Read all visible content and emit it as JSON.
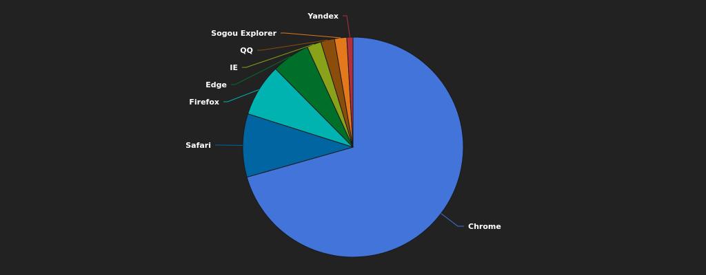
{
  "chart_data": {
    "type": "pie",
    "labels": [
      "Chrome",
      "Safari",
      "Firefox",
      "Edge",
      "IE",
      "QQ",
      "Sogou Explorer",
      "Yandex"
    ],
    "values": [
      70.6,
      9.3,
      7.7,
      5.6,
      2.1,
      2.0,
      1.8,
      0.9
    ],
    "colors": [
      "#4374d9",
      "#0065a0",
      "#00b2b0",
      "#006f2a",
      "#88a21a",
      "#8a4d0b",
      "#e3781c",
      "#b2303d"
    ],
    "start_angle_deg": 0,
    "direction": "clockwise",
    "label_color": "#ffffff",
    "slice_border_color": "#1a1a1a",
    "background": "#222222"
  }
}
